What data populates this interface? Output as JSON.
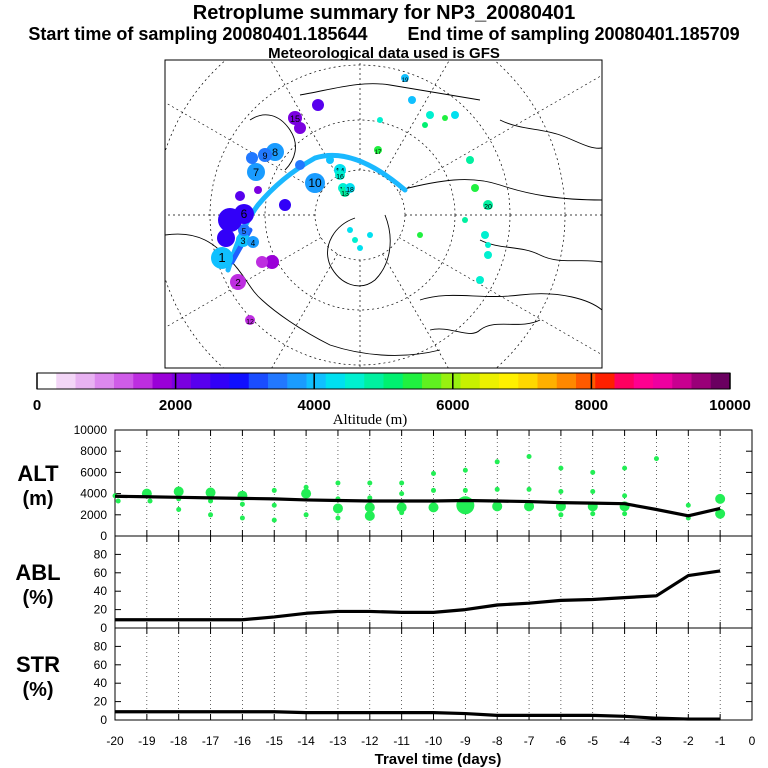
{
  "title": "Retroplume summary for NP3_20080401",
  "start_label": "Start time of sampling 20080401.185644",
  "end_label": "End time of sampling 20080401.185709",
  "met_label": "Meteorological data used is GFS",
  "colorbar": {
    "label": "Altitude (m)",
    "ticks": [
      "0",
      "2000",
      "4000",
      "6000",
      "8000",
      "10000"
    ],
    "colors": [
      "#ffffff",
      "#f3d6f7",
      "#e8b2f2",
      "#dc88ee",
      "#cf5ce8",
      "#bd2ee0",
      "#9a00d8",
      "#7a00e0",
      "#5800ee",
      "#3200f8",
      "#1010ff",
      "#1a4dff",
      "#2278ff",
      "#1a9cff",
      "#10c0ff",
      "#00e0f0",
      "#00f0d0",
      "#00f0a0",
      "#00f070",
      "#20f040",
      "#60f020",
      "#98f010",
      "#c8f000",
      "#ecf000",
      "#fff000",
      "#ffd800",
      "#ffb000",
      "#ff8800",
      "#ff5a00",
      "#ff2000",
      "#ff0060",
      "#ff0090",
      "#ee00a0",
      "#c80090",
      "#9a0078",
      "#6a0060"
    ]
  },
  "map_numbers": [
    "1",
    "2",
    "3",
    "4",
    "5",
    "6",
    "7",
    "8",
    "9",
    "10",
    "11",
    "12",
    "13",
    "14",
    "15",
    "16",
    "17",
    "18",
    "19",
    "20"
  ],
  "chart_data": [
    {
      "type": "line",
      "name": "ALT",
      "ylabel": "ALT\n(m)",
      "ylabel_top": "ALT",
      "ylabel_bottom": "(m)",
      "ylim": [
        0,
        10000
      ],
      "yticks": [
        "0",
        "2000",
        "4000",
        "6000",
        "8000",
        "10000"
      ],
      "x": [
        -20,
        -19,
        -18,
        -17,
        -16,
        -15,
        -14,
        -13,
        -12,
        -11,
        -10,
        -9,
        -8,
        -7,
        -6,
        -5,
        -4,
        -3,
        -2,
        -1
      ],
      "series": [
        {
          "name": "mean altitude",
          "values": [
            3750,
            3700,
            3650,
            3600,
            3550,
            3500,
            3400,
            3350,
            3300,
            3300,
            3300,
            3350,
            3300,
            3250,
            3150,
            3100,
            3050,
            2500,
            1900,
            2600
          ]
        }
      ],
      "scatter": [
        {
          "x": -20,
          "y": 3800,
          "s": 1
        },
        {
          "x": -19.9,
          "y": 3300,
          "s": 1
        },
        {
          "x": -19,
          "y": 4000,
          "s": 2
        },
        {
          "x": -18.9,
          "y": 3300,
          "s": 1
        },
        {
          "x": -18,
          "y": 4200,
          "s": 2
        },
        {
          "x": -18,
          "y": 3500,
          "s": 1
        },
        {
          "x": -18,
          "y": 2500,
          "s": 1
        },
        {
          "x": -17,
          "y": 4100,
          "s": 2
        },
        {
          "x": -17,
          "y": 3300,
          "s": 1
        },
        {
          "x": -17,
          "y": 2000,
          "s": 1
        },
        {
          "x": -16,
          "y": 3800,
          "s": 2
        },
        {
          "x": -16,
          "y": 3000,
          "s": 1
        },
        {
          "x": -16,
          "y": 1700,
          "s": 1
        },
        {
          "x": -15,
          "y": 4300,
          "s": 1
        },
        {
          "x": -15,
          "y": 2900,
          "s": 1
        },
        {
          "x": -15,
          "y": 1500,
          "s": 1
        },
        {
          "x": -14,
          "y": 4600,
          "s": 1
        },
        {
          "x": -14,
          "y": 4000,
          "s": 2
        },
        {
          "x": -14,
          "y": 2000,
          "s": 1
        },
        {
          "x": -13,
          "y": 5000,
          "s": 1
        },
        {
          "x": -13,
          "y": 3500,
          "s": 1
        },
        {
          "x": -13,
          "y": 2600,
          "s": 2
        },
        {
          "x": -13,
          "y": 1700,
          "s": 1
        },
        {
          "x": -12,
          "y": 5000,
          "s": 1
        },
        {
          "x": -12,
          "y": 3600,
          "s": 1
        },
        {
          "x": -12,
          "y": 2700,
          "s": 2
        },
        {
          "x": -12,
          "y": 1900,
          "s": 2
        },
        {
          "x": -11,
          "y": 5000,
          "s": 1
        },
        {
          "x": -11,
          "y": 4000,
          "s": 1
        },
        {
          "x": -11,
          "y": 2700,
          "s": 2
        },
        {
          "x": -11,
          "y": 2200,
          "s": 1
        },
        {
          "x": -10,
          "y": 5900,
          "s": 1
        },
        {
          "x": -10,
          "y": 4300,
          "s": 1
        },
        {
          "x": -10,
          "y": 2700,
          "s": 2
        },
        {
          "x": -9,
          "y": 6200,
          "s": 1
        },
        {
          "x": -9,
          "y": 4300,
          "s": 1
        },
        {
          "x": -9,
          "y": 2900,
          "s": 3
        },
        {
          "x": -8,
          "y": 7000,
          "s": 1
        },
        {
          "x": -8,
          "y": 4400,
          "s": 1
        },
        {
          "x": -8,
          "y": 2800,
          "s": 2
        },
        {
          "x": -7,
          "y": 7500,
          "s": 1
        },
        {
          "x": -7,
          "y": 4400,
          "s": 1
        },
        {
          "x": -7,
          "y": 2800,
          "s": 2
        },
        {
          "x": -6,
          "y": 6400,
          "s": 1
        },
        {
          "x": -6,
          "y": 4200,
          "s": 1
        },
        {
          "x": -6,
          "y": 2800,
          "s": 2
        },
        {
          "x": -6,
          "y": 2000,
          "s": 1
        },
        {
          "x": -5,
          "y": 6000,
          "s": 1
        },
        {
          "x": -5,
          "y": 4200,
          "s": 1
        },
        {
          "x": -5,
          "y": 2800,
          "s": 2
        },
        {
          "x": -5,
          "y": 2100,
          "s": 1
        },
        {
          "x": -4,
          "y": 6400,
          "s": 1
        },
        {
          "x": -4,
          "y": 3800,
          "s": 1
        },
        {
          "x": -4,
          "y": 2800,
          "s": 2
        },
        {
          "x": -4,
          "y": 2100,
          "s": 1
        },
        {
          "x": -3,
          "y": 7300,
          "s": 1
        },
        {
          "x": -2,
          "y": 2900,
          "s": 1
        },
        {
          "x": -2,
          "y": 1700,
          "s": 1
        },
        {
          "x": -1,
          "y": 3500,
          "s": 2
        },
        {
          "x": -1,
          "y": 2100,
          "s": 2
        }
      ]
    },
    {
      "type": "line",
      "name": "ABL",
      "ylabel_top": "ABL",
      "ylabel_bottom": "(%)",
      "ylim": [
        0,
        100
      ],
      "yticks": [
        "0",
        "20",
        "40",
        "60",
        "80"
      ],
      "x": [
        -20,
        -19,
        -18,
        -17,
        -16,
        -15,
        -14,
        -13,
        -12,
        -11,
        -10,
        -9,
        -8,
        -7,
        -6,
        -5,
        -4,
        -3,
        -2,
        -1
      ],
      "series": [
        {
          "name": "ABL fraction",
          "values": [
            9,
            9,
            9,
            9,
            9,
            12,
            16,
            18,
            18,
            17,
            17,
            20,
            25,
            27,
            30,
            31,
            33,
            35,
            57,
            62
          ]
        }
      ]
    },
    {
      "type": "line",
      "name": "STR",
      "ylabel_top": "STR",
      "ylabel_bottom": "(%)",
      "ylim": [
        0,
        100
      ],
      "yticks": [
        "0",
        "20",
        "40",
        "60",
        "80"
      ],
      "x": [
        -20,
        -19,
        -18,
        -17,
        -16,
        -15,
        -14,
        -13,
        -12,
        -11,
        -10,
        -9,
        -8,
        -7,
        -6,
        -5,
        -4,
        -3,
        -2,
        -1
      ],
      "series": [
        {
          "name": "STR fraction",
          "values": [
            9,
            9,
            9,
            9,
            9,
            9,
            8,
            8,
            8,
            8,
            8,
            7,
            5,
            5,
            5,
            5,
            4,
            2,
            1,
            1
          ]
        }
      ]
    }
  ],
  "xaxis": {
    "label": "Travel time (days)",
    "ticks": [
      "-20",
      "-19",
      "-18",
      "-17",
      "-16",
      "-15",
      "-14",
      "-13",
      "-12",
      "-11",
      "-10",
      "-9",
      "-8",
      "-7",
      "-6",
      "-5",
      "-4",
      "-3",
      "-2",
      "-1",
      "0"
    ]
  }
}
